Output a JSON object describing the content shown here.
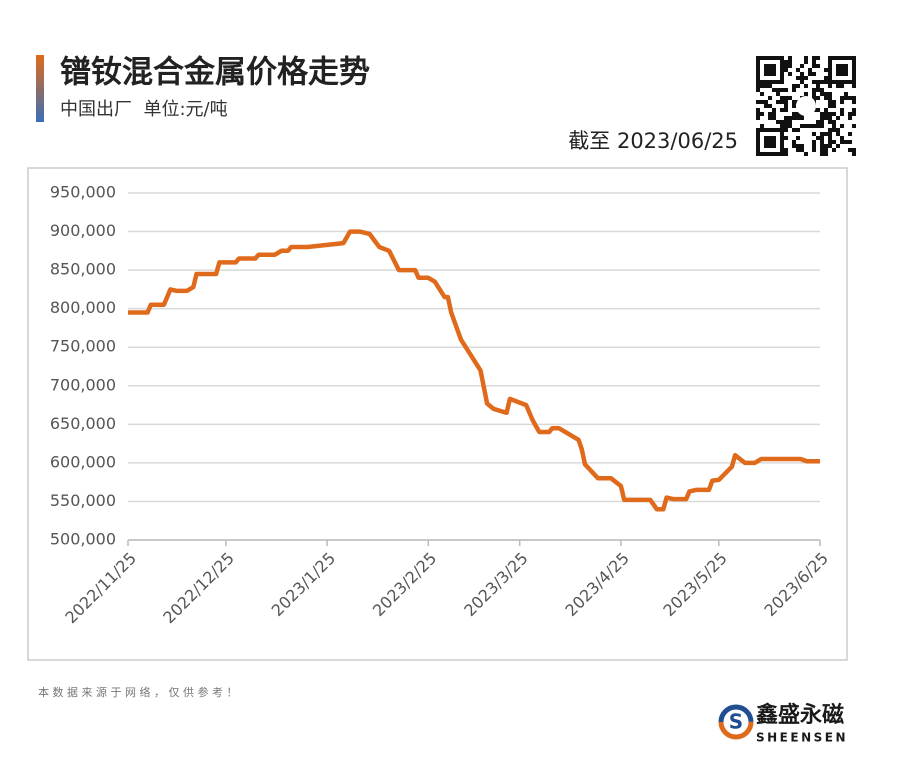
{
  "chart_data": {
    "type": "line",
    "title": "镨钕混合金属价格走势",
    "subtitle": "中国出厂  单位:元/吨",
    "date_note": "截至 2023/06/25",
    "source_note": "本 数 据 来 源 于 网 络 ， 仅 供 参 考 ！",
    "brand": "鑫盛永磁",
    "brand_latin": "SHEENSEN",
    "x": [
      "2022/11/25",
      "2022/12/1",
      "2022/12/2",
      "2022/12/6",
      "2022/12/8",
      "2022/12/10",
      "2022/12/13",
      "2022/12/15",
      "2022/12/16",
      "2022/12/22",
      "2022/12/23",
      "2022/12/28",
      "2022/12/29",
      "2023/1/3",
      "2023/1/4",
      "2023/1/9",
      "2023/1/11",
      "2023/1/13",
      "2023/1/14",
      "2023/1/19",
      "2023/1/30",
      "2023/2/1",
      "2023/2/4",
      "2023/2/7",
      "2023/2/10",
      "2023/2/13",
      "2023/2/16",
      "2023/2/21",
      "2023/2/22",
      "2023/2/25",
      "2023/2/27",
      "2023/3/2",
      "2023/3/3",
      "2023/3/4",
      "2023/3/7",
      "2023/3/10",
      "2023/3/13",
      "2023/3/15",
      "2023/3/17",
      "2023/3/21",
      "2023/3/22",
      "2023/3/27",
      "2023/3/29",
      "2023/3/31",
      "2023/4/3",
      "2023/4/4",
      "2023/4/6",
      "2023/4/12",
      "2023/4/13",
      "2023/4/14",
      "2023/4/18",
      "2023/4/22",
      "2023/4/25",
      "2023/4/26",
      "2023/5/4",
      "2023/5/6",
      "2023/5/8",
      "2023/5/9",
      "2023/5/11",
      "2023/5/15",
      "2023/5/16",
      "2023/5/18",
      "2023/5/22",
      "2023/5/23",
      "2023/5/25",
      "2023/5/29",
      "2023/5/30",
      "2023/6/2",
      "2023/6/5",
      "2023/6/7",
      "2023/6/19",
      "2023/6/21",
      "2023/6/25"
    ],
    "series": [
      {
        "name": "镨钕混合金属",
        "color": "#e06a1b",
        "values": [
          795000,
          795000,
          805000,
          805000,
          825000,
          823000,
          823000,
          828000,
          845000,
          845000,
          860000,
          860000,
          865000,
          865000,
          870000,
          870000,
          875000,
          875000,
          880000,
          880000,
          885000,
          900000,
          900000,
          897000,
          880000,
          875000,
          850000,
          850000,
          840000,
          840000,
          835000,
          815000,
          815000,
          795000,
          760000,
          740000,
          720000,
          677000,
          670000,
          665000,
          683000,
          675000,
          655000,
          640000,
          640000,
          645000,
          645000,
          630000,
          618000,
          598000,
          580000,
          580000,
          570000,
          552000,
          552000,
          540000,
          540000,
          555000,
          553000,
          553000,
          563000,
          565000,
          565000,
          577000,
          578000,
          595000,
          610000,
          600000,
          600000,
          605000,
          605000,
          602000,
          602000
        ]
      }
    ],
    "xlim": [
      "2022/11/25",
      "2023/6/25"
    ],
    "xticks": [
      "2022/11/25",
      "2022/12/25",
      "2023/1/25",
      "2023/2/25",
      "2023/3/25",
      "2023/4/25",
      "2023/5/25",
      "2023/6/25"
    ],
    "ylim": [
      500000,
      950000
    ],
    "yticks": [
      {
        "value": 500000,
        "label": "500,000"
      },
      {
        "value": 550000,
        "label": "550,000"
      },
      {
        "value": 600000,
        "label": "600,000"
      },
      {
        "value": 650000,
        "label": "650,000"
      },
      {
        "value": 700000,
        "label": "700,000"
      },
      {
        "value": 750000,
        "label": "750,000"
      },
      {
        "value": 800000,
        "label": "800,000"
      },
      {
        "value": 850000,
        "label": "850,000"
      },
      {
        "value": 900000,
        "label": "900,000"
      },
      {
        "value": 950000,
        "label": "950,000"
      }
    ],
    "grid": true
  }
}
